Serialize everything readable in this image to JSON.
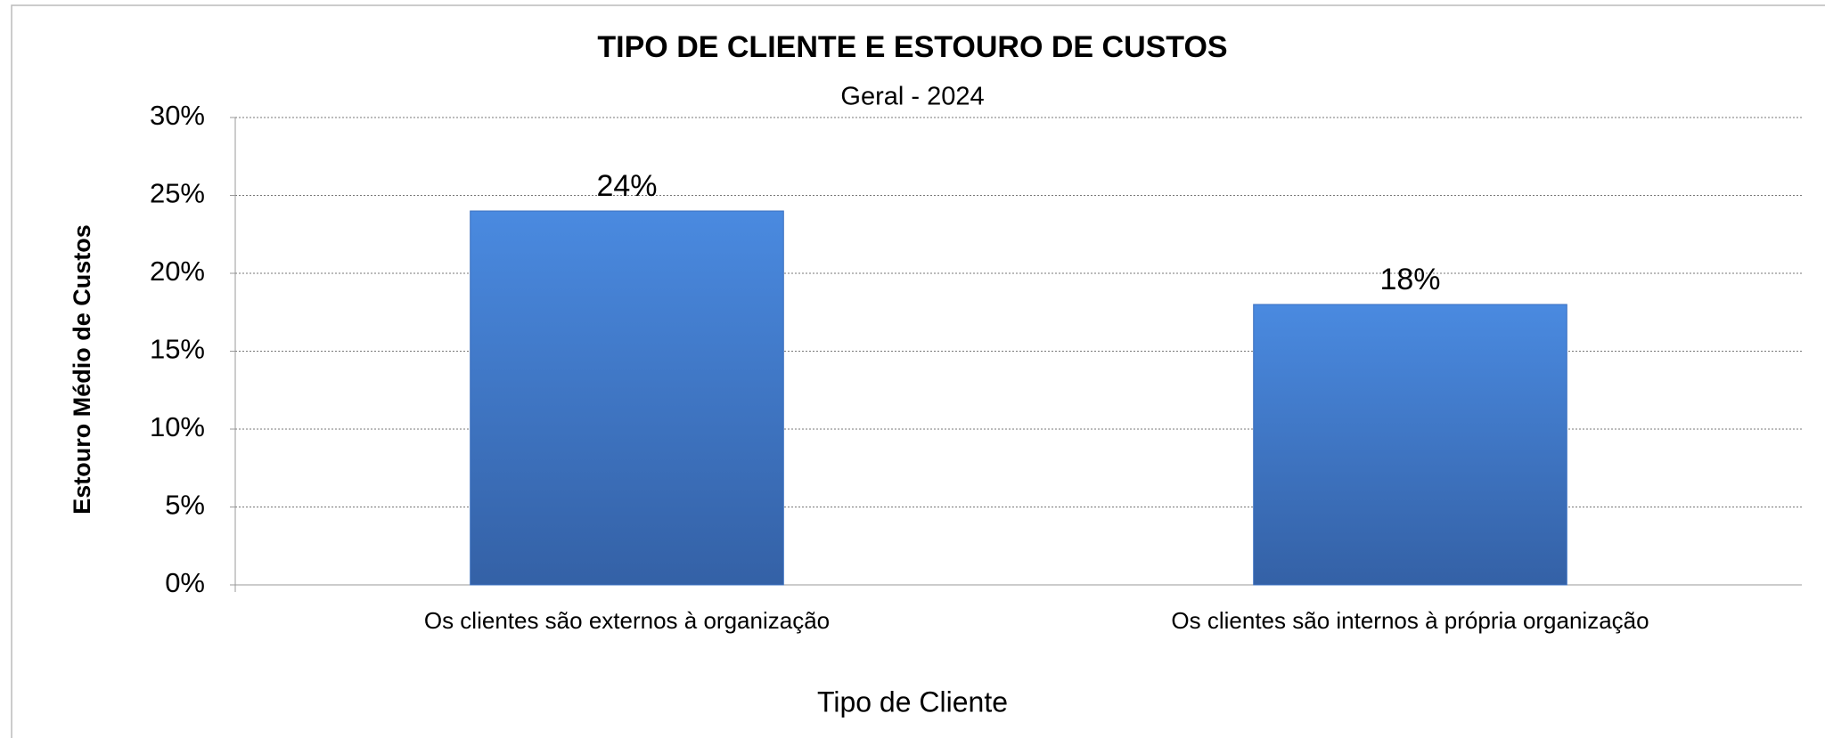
{
  "chart_data": {
    "type": "bar",
    "title": "TIPO DE CLIENTE E ESTOURO DE CUSTOS",
    "subtitle": "Geral - 2024",
    "x_label": "Tipo de Cliente",
    "y_label": "Estouro Médio de Custos",
    "categories": [
      "Os clientes são externos à organização",
      "Os clientes são internos à própria organização"
    ],
    "values": [
      24,
      18
    ],
    "value_labels": [
      "24%",
      "18%"
    ],
    "color": "#4a8ae0",
    "ylim": [
      0,
      30
    ],
    "yticks": [
      {
        "value": 0,
        "label": "0%"
      },
      {
        "value": 5,
        "label": "5%"
      },
      {
        "value": 10,
        "label": "10%"
      },
      {
        "value": 15,
        "label": "15%"
      },
      {
        "value": 20,
        "label": "20%"
      },
      {
        "value": 25,
        "label": "25%"
      },
      {
        "value": 30,
        "label": "30%"
      }
    ],
    "grid": true
  }
}
